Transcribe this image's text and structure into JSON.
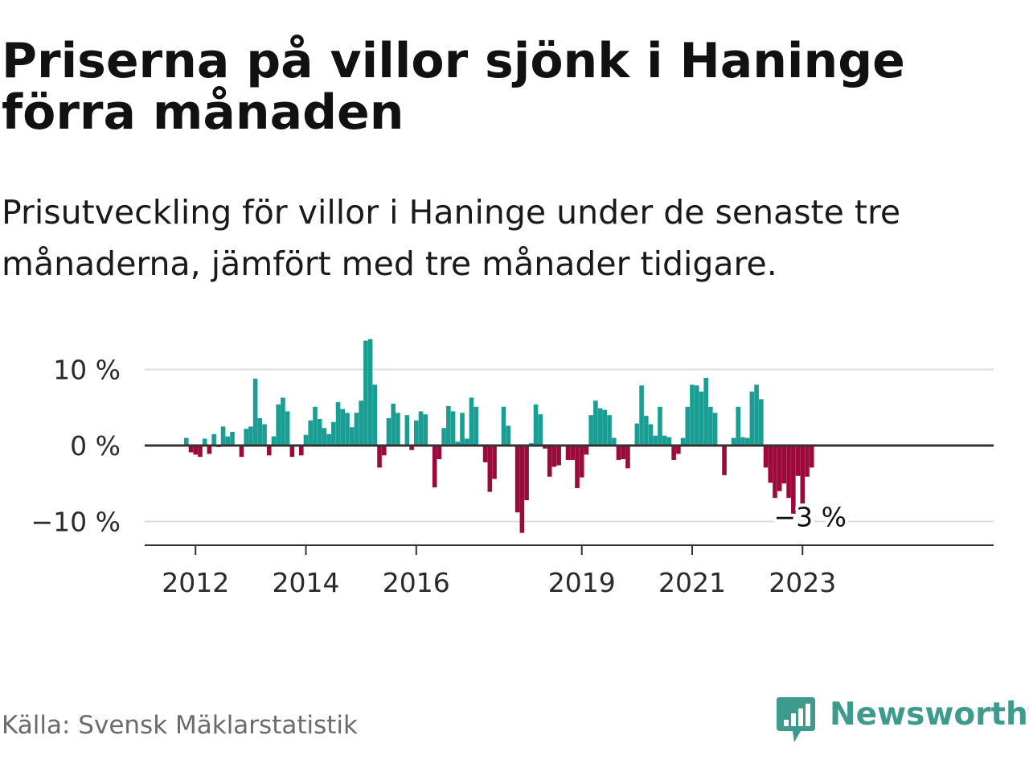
{
  "title": "Priserna på villor sjönk i Haninge förra månaden",
  "subtitle": "Prisutveckling för villor i Haninge under de senaste tre månaderna, jämfört med tre månader tidigare.",
  "source": "Källa: Svensk Mäklarstatistik",
  "brand": {
    "name": "Newsworthy",
    "icon": "newsworthy-logo-icon"
  },
  "colors": {
    "positive": "#1a9e94",
    "negative": "#9c0a3c",
    "grid": "#dddddd",
    "axis": "#333333",
    "brand": "#3d9a8c"
  },
  "chart_data": {
    "type": "bar",
    "ylabel": "",
    "xlabel": "",
    "y_unit": "%",
    "ylim": [
      -13,
      15
    ],
    "y_ticks": [
      {
        "value": 10,
        "label": "10 %"
      },
      {
        "value": 0,
        "label": "0 %"
      },
      {
        "value": -10,
        "label": "−10 %"
      }
    ],
    "x_ticks": [
      "2012",
      "2014",
      "2016",
      "2019",
      "2021",
      "2023"
    ],
    "start": "2011-11",
    "annotation": {
      "label": "−3 %",
      "target": "last"
    },
    "grid": true,
    "legend": "none",
    "values": [
      1.0,
      -0.9,
      -1.2,
      -1.5,
      0.9,
      -1.1,
      1.5,
      -0.2,
      2.5,
      1.2,
      1.8,
      0,
      -1.5,
      2.2,
      2.5,
      8.8,
      3.6,
      2.8,
      -1.3,
      1.2,
      5.4,
      6.3,
      4.5,
      -1.5,
      0,
      -1.3,
      1.4,
      3.3,
      5.1,
      3.5,
      2.3,
      1.5,
      3.1,
      5.7,
      4.8,
      4.3,
      2.4,
      4.3,
      5.9,
      13.8,
      14.0,
      8.0,
      -2.9,
      -1.3,
      3.6,
      5.5,
      4.3,
      0,
      4.0,
      -0.6,
      3.3,
      4.5,
      4.1,
      0,
      -5.5,
      -1.8,
      2.3,
      5.2,
      4.5,
      0.5,
      4.3,
      0.9,
      6.3,
      5.1,
      0,
      -2.2,
      -6.1,
      -4.4,
      0,
      5.1,
      2.6,
      0,
      -8.8,
      -11.5,
      -7.2,
      0.3,
      5.4,
      4.1,
      -0.4,
      -4.1,
      -2.8,
      -2.6,
      0,
      -1.9,
      -1.9,
      -5.6,
      -4.2,
      -1.2,
      4.0,
      5.9,
      4.9,
      4.7,
      4.0,
      1.0,
      -1.9,
      -1.8,
      -3.0,
      0,
      2.9,
      7.9,
      3.9,
      2.8,
      1.3,
      5.1,
      1.3,
      1.1,
      -1.9,
      -1.1,
      1.0,
      5.1,
      8.0,
      7.9,
      7.1,
      8.9,
      5.1,
      4.3,
      0,
      -3.9,
      0,
      1.0,
      5.1,
      1.1,
      1.0,
      7.1,
      8.0,
      6.1,
      -2.9,
      -4.9,
      -6.9,
      -6.0,
      -5.0,
      -6.9,
      -9.0,
      -4.0,
      -8.9,
      -4.1,
      -2.9
    ]
  }
}
